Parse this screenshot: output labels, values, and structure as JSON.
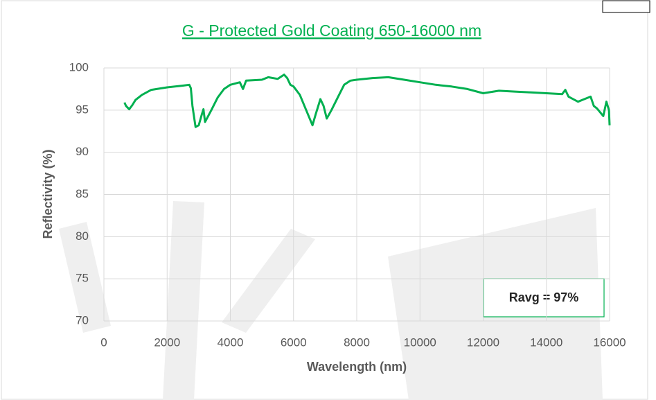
{
  "chart_data": {
    "type": "line",
    "title": "G - Protected Gold Coating 650-16000 nm",
    "x_label": "Wavelength (nm)",
    "y_label": "Reflectivity (%)",
    "annotation": "Ravg = 97%",
    "xlim": [
      0,
      16000
    ],
    "xticks": [
      0,
      2000,
      4000,
      6000,
      8000,
      10000,
      12000,
      14000,
      16000
    ],
    "ylim": [
      70,
      100
    ],
    "yticks": [
      70,
      75,
      80,
      85,
      90,
      95,
      100
    ],
    "grid": true,
    "series": [
      {
        "name": "G - Protected Gold Coating",
        "color": "#00b050",
        "x": [
          650,
          700,
          800,
          900,
          1000,
          1200,
          1500,
          2000,
          2500,
          2700,
          2750,
          2800,
          2900,
          3000,
          3100,
          3150,
          3200,
          3400,
          3600,
          3800,
          4000,
          4300,
          4400,
          4500,
          5000,
          5200,
          5500,
          5700,
          5800,
          5900,
          6000,
          6200,
          6400,
          6600,
          6700,
          6850,
          6950,
          7050,
          7200,
          7400,
          7600,
          7800,
          8000,
          8500,
          9000,
          9500,
          10000,
          10500,
          11000,
          11500,
          12000,
          12500,
          13000,
          13500,
          14000,
          14500,
          14600,
          14700,
          15000,
          15200,
          15400,
          15500,
          15600,
          15800,
          15900,
          15980,
          16000
        ],
        "values": [
          95.9,
          95.5,
          95.1,
          95.6,
          96.2,
          96.8,
          97.4,
          97.7,
          97.9,
          98.0,
          97.6,
          95.5,
          93.0,
          93.2,
          94.5,
          95.1,
          93.6,
          95.0,
          96.5,
          97.5,
          98.0,
          98.3,
          97.5,
          98.5,
          98.6,
          98.9,
          98.7,
          99.2,
          98.8,
          98.0,
          97.8,
          96.8,
          95.0,
          93.2,
          94.5,
          96.3,
          95.5,
          94.0,
          95.0,
          96.5,
          98.0,
          98.5,
          98.6,
          98.8,
          98.9,
          98.6,
          98.3,
          98.0,
          97.8,
          97.5,
          97.0,
          97.3,
          97.2,
          97.1,
          97.0,
          96.9,
          97.4,
          96.6,
          96.0,
          96.3,
          96.6,
          95.5,
          95.2,
          94.3,
          96.0,
          95.0,
          93.2
        ]
      }
    ]
  }
}
